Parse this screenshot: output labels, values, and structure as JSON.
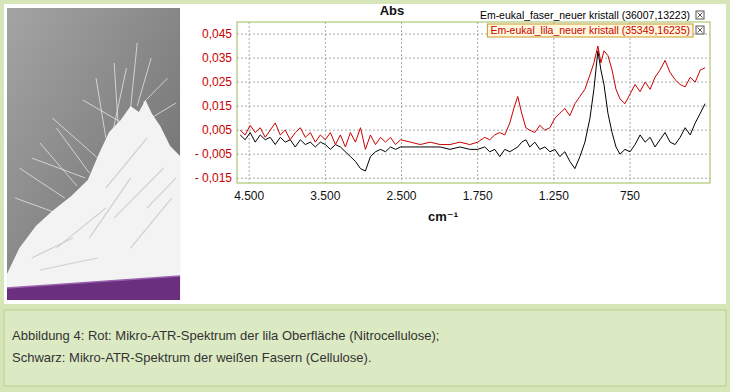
{
  "chart_data": {
    "type": "line",
    "title": "Abs",
    "x_label": "cm⁻¹",
    "x": [
      4618,
      4553,
      4487,
      4421,
      4355,
      4289,
      4224,
      4158,
      4092,
      4026,
      3961,
      3895,
      3829,
      3763,
      3697,
      3632,
      3566,
      3500,
      3434,
      3368,
      3303,
      3237,
      3171,
      3105,
      3039,
      2974,
      2908,
      2842,
      2776,
      2711,
      2645,
      2579,
      2513,
      2412,
      2315,
      2218,
      2120,
      2023,
      1925,
      1828,
      1750,
      1704,
      1671,
      1638,
      1605,
      1572,
      1539,
      1513,
      1487,
      1461,
      1434,
      1408,
      1375,
      1342,
      1309,
      1276,
      1243,
      1211,
      1178,
      1145,
      1112,
      1079,
      1046,
      1013,
      987,
      961,
      941,
      921,
      895,
      868,
      842,
      816,
      783,
      750,
      717,
      684,
      651,
      618,
      586,
      553,
      520,
      487,
      454,
      421,
      388,
      355,
      322,
      289,
      257
    ],
    "xlim": [
      4660,
      225
    ],
    "xticks": [
      {
        "value": 4500,
        "label": "4.500"
      },
      {
        "value": 3500,
        "label": "3.500"
      },
      {
        "value": 2500,
        "label": "2.500"
      },
      {
        "value": 1750,
        "label": "1.750"
      },
      {
        "value": 1250,
        "label": "1.250"
      },
      750
    ],
    "ylim": [
      -0.017,
      0.05
    ],
    "yticks": [
      {
        "value": 0.045,
        "label": "0,045"
      },
      {
        "value": 0.035,
        "label": "0,035"
      },
      {
        "value": 0.025,
        "label": "0,025"
      },
      {
        "value": 0.015,
        "label": "0,015"
      },
      {
        "value": 0.005,
        "label": "0,005"
      },
      {
        "value": -0.005,
        "label": "- 0,005"
      },
      {
        "value": -0.015,
        "label": "- 0,015"
      }
    ],
    "grid": true,
    "legend": "top-right",
    "series": [
      {
        "name": "Em-eukal_faser_neuer kristall (36007,13223)",
        "color": "#000000",
        "values": [
          0.003,
          0.001,
          0.004,
          0.0,
          0.003,
          0.001,
          0.002,
          -0.001,
          0.002,
          0.0,
          0.001,
          -0.002,
          0.001,
          -0.001,
          0.0,
          -0.002,
          0.0,
          -0.001,
          -0.003,
          -0.001,
          -0.002,
          -0.004,
          -0.006,
          -0.008,
          -0.011,
          -0.012,
          -0.006,
          -0.004,
          -0.003,
          -0.004,
          -0.002,
          -0.003,
          -0.002,
          -0.002,
          -0.002,
          -0.002,
          -0.002,
          -0.003,
          -0.002,
          -0.003,
          -0.003,
          -0.002,
          -0.004,
          -0.003,
          -0.006,
          -0.003,
          -0.004,
          -0.003,
          -0.002,
          0.0,
          0.001,
          -0.002,
          0.0,
          -0.003,
          -0.002,
          -0.004,
          -0.003,
          -0.006,
          -0.004,
          -0.008,
          -0.011,
          -0.006,
          0.0,
          0.01,
          0.022,
          0.038,
          0.03,
          0.024,
          0.012,
          0.004,
          -0.002,
          -0.005,
          -0.003,
          -0.004,
          -0.001,
          0.003,
          0.0,
          0.002,
          -0.002,
          0.001,
          0.004,
          0.0,
          -0.001,
          0.002,
          0.006,
          0.003,
          0.008,
          0.012,
          0.016
        ]
      },
      {
        "name": "Em-eukal_lila_neuer kristall (35349,16235)",
        "color": "#cc0000",
        "values": [
          0.005,
          0.003,
          0.007,
          0.004,
          0.006,
          0.002,
          0.005,
          0.008,
          0.003,
          0.005,
          0.001,
          0.004,
          0.006,
          0.002,
          0.004,
          0.0,
          0.003,
          0.001,
          0.004,
          -0.001,
          0.003,
          -0.002,
          0.004,
          0.0,
          0.006,
          -0.003,
          0.003,
          -0.001,
          0.002,
          0.0,
          0.002,
          -0.001,
          0.001,
          0.0,
          -0.001,
          0.0,
          -0.001,
          -0.001,
          0.0,
          -0.001,
          0.0,
          0.002,
          0.001,
          0.003,
          0.004,
          0.003,
          0.008,
          0.014,
          0.019,
          0.012,
          0.006,
          0.005,
          0.004,
          0.007,
          0.005,
          0.006,
          0.01,
          0.012,
          0.014,
          0.011,
          0.016,
          0.019,
          0.022,
          0.028,
          0.033,
          0.04,
          0.033,
          0.038,
          0.036,
          0.03,
          0.022,
          0.018,
          0.016,
          0.02,
          0.024,
          0.021,
          0.025,
          0.022,
          0.027,
          0.03,
          0.034,
          0.029,
          0.026,
          0.024,
          0.023,
          0.027,
          0.025,
          0.03,
          0.031
        ]
      }
    ]
  },
  "caption": [
    "Abbildung 4: Rot: Mikro-ATR-Spektrum der lila Oberfläche (Nitrocellulose);",
    "Schwarz: Mikro-ATR-Spektrum der weißen Fasern (Cellulose)."
  ]
}
